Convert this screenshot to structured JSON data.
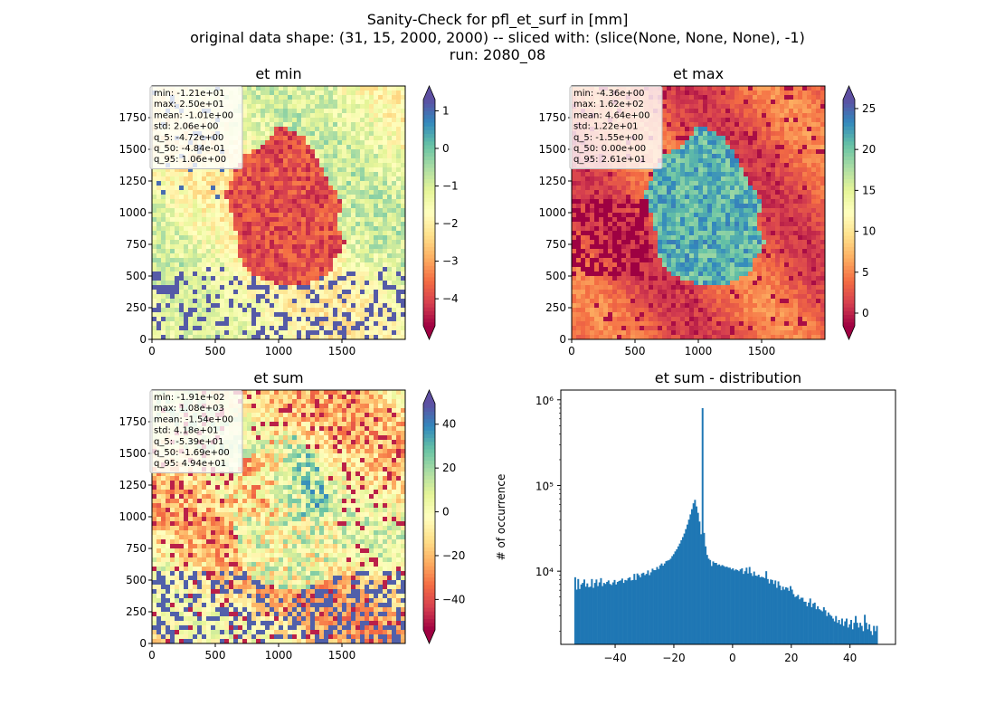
{
  "figure": {
    "suptitle_lines": [
      "Sanity-Check for pfl_et_surf in [mm]",
      "original data shape: (31, 15, 2000, 2000) -- sliced with: (slice(None, None, None), -1)",
      "run: 2080_08"
    ]
  },
  "colormap": {
    "name": "Spectral",
    "stops": [
      "#9e0142",
      "#d53e4f",
      "#f46d43",
      "#fdae61",
      "#fee08b",
      "#ffffbf",
      "#e6f598",
      "#abdda4",
      "#66c2a5",
      "#3288bd",
      "#5e4fa2"
    ]
  },
  "chart_data": [
    {
      "type": "heatmap",
      "title": "et min",
      "x_ticks": [
        "0",
        "500",
        "1000",
        "1500"
      ],
      "y_ticks": [
        "0",
        "250",
        "500",
        "750",
        "1000",
        "1250",
        "1500",
        "1750"
      ],
      "xlim": [
        0,
        2000
      ],
      "ylim": [
        0,
        2000
      ],
      "colorbar": {
        "ticks": [
          "1",
          "0",
          "−1",
          "−2",
          "−3",
          "−4"
        ],
        "tick_values": [
          1,
          0,
          -1,
          -2,
          -3,
          -4
        ],
        "range": [
          -4.72,
          1.3
        ],
        "extend": "both"
      },
      "stats_box": [
        "min: -1.21e+01",
        "max: 2.50e+01",
        "mean: -1.01e+00",
        "std: 2.06e+00",
        "q_5: -4.72e+00",
        "q_50: -4.84e-01",
        "q_95: 1.06e+00"
      ]
    },
    {
      "type": "heatmap",
      "title": "et max",
      "x_ticks": [
        "0",
        "500",
        "1000",
        "1500"
      ],
      "y_ticks": [
        "0",
        "250",
        "500",
        "750",
        "1000",
        "1250",
        "1500",
        "1750"
      ],
      "xlim": [
        0,
        2000
      ],
      "ylim": [
        0,
        2000
      ],
      "colorbar": {
        "ticks": [
          "25",
          "20",
          "15",
          "10",
          "5",
          "0"
        ],
        "tick_values": [
          25,
          20,
          15,
          10,
          5,
          0
        ],
        "range": [
          -1.55,
          26.1
        ],
        "extend": "both"
      },
      "stats_box": [
        "min: -4.36e+00",
        "max: 1.62e+02",
        "mean: 4.64e+00",
        "std: 1.22e+01",
        "q_5: -1.55e+00",
        "q_50: 0.00e+00",
        "q_95: 2.61e+01"
      ]
    },
    {
      "type": "heatmap",
      "title": "et sum",
      "x_ticks": [
        "0",
        "500",
        "1000",
        "1500"
      ],
      "y_ticks": [
        "0",
        "250",
        "500",
        "750",
        "1000",
        "1250",
        "1500",
        "1750"
      ],
      "xlim": [
        0,
        2000
      ],
      "ylim": [
        0,
        2000
      ],
      "colorbar": {
        "ticks": [
          "40",
          "20",
          "0",
          "−20",
          "−40"
        ],
        "tick_values": [
          40,
          20,
          0,
          -20,
          -40
        ],
        "range": [
          -53.9,
          49.4
        ],
        "extend": "both"
      },
      "stats_box": [
        "min: -1.91e+02",
        "max: 1.08e+03",
        "mean: -1.54e+00",
        "std: 4.18e+01",
        "q_5: -5.39e+01",
        "q_50: -1.69e+00",
        "q_95: 4.94e+01"
      ]
    },
    {
      "type": "bar",
      "title": "et sum - distribution",
      "ylabel": "# of occurrence",
      "yscale": "log",
      "x_ticks": [
        "−40",
        "−20",
        "0",
        "20",
        "40"
      ],
      "x_tick_values": [
        -40,
        -20,
        0,
        20,
        40
      ],
      "xlim": [
        -58.5,
        55.5
      ],
      "ylim": [
        1400,
        1300000
      ],
      "y_ticks": [
        "10⁴",
        "10⁵",
        "10⁶"
      ],
      "y_tick_values": [
        10000,
        100000,
        1000000
      ],
      "bin_range": [
        -53.9,
        49.4
      ],
      "counts": [
        8500,
        6100,
        8100,
        6200,
        7000,
        7300,
        8000,
        6600,
        7200,
        6500,
        6600,
        8100,
        6400,
        7300,
        8000,
        6700,
        7400,
        8300,
        6700,
        7300,
        7100,
        7500,
        7800,
        7100,
        6900,
        7400,
        7900,
        7000,
        7500,
        7700,
        7800,
        8200,
        7300,
        7900,
        7800,
        8300,
        8500,
        7800,
        7900,
        9300,
        7900,
        9400,
        9000,
        8500,
        9400,
        9600,
        9000,
        9300,
        10200,
        9000,
        9700,
        10700,
        10300,
        10300,
        11200,
        10600,
        11700,
        12300,
        11600,
        12300,
        13100,
        13300,
        13500,
        14000,
        15000,
        15800,
        17000,
        18000,
        19500,
        21000,
        23000,
        25000,
        27500,
        31000,
        35000,
        40000,
        46000,
        53000,
        62000,
        68000,
        57000,
        48000,
        38000,
        27000,
        800000,
        28000,
        19500,
        15500,
        14000,
        13500,
        11500,
        13000,
        12500,
        12500,
        11800,
        12000,
        11500,
        11800,
        11500,
        11200,
        11300,
        11000,
        11000,
        10500,
        10800,
        10200,
        10500,
        10300,
        10000,
        10500,
        10800,
        9300,
        10000,
        11000,
        9400,
        11200,
        9500,
        8800,
        9900,
        8900,
        8800,
        9100,
        8500,
        8600,
        8500,
        8300,
        10000,
        8100,
        7200,
        8000,
        7900,
        7100,
        7800,
        6400,
        7600,
        6800,
        6000,
        6600,
        6100,
        6500,
        6400,
        5900,
        6700,
        6100,
        5400,
        5000,
        5100,
        5300,
        4700,
        4900,
        4900,
        4400,
        4400,
        3900,
        4300,
        4800,
        3800,
        4200,
        4300,
        3600,
        3900,
        3600,
        3500,
        3400,
        3800,
        3500,
        3000,
        3300,
        3100,
        3000,
        2800,
        2600,
        3000,
        2500,
        2700,
        2400,
        2800,
        2300,
        2600,
        2800,
        2200,
        2400,
        2700,
        2100,
        2500,
        3000,
        2500,
        2200,
        2500,
        2300,
        2000,
        3100,
        2500,
        2100,
        2400,
        2000,
        1800,
        2300,
        2000,
        2300
      ]
    }
  ]
}
